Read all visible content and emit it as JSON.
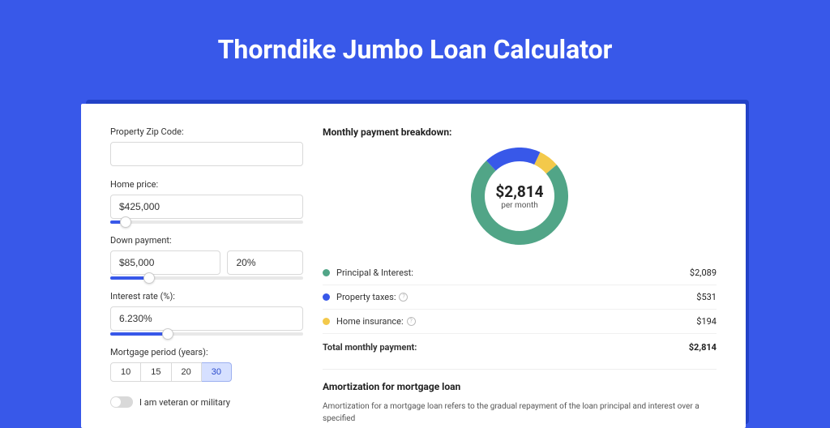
{
  "page": {
    "title": "Thorndike Jumbo Loan Calculator",
    "background_color": "#3858e9"
  },
  "form": {
    "zip": {
      "label": "Property Zip Code:",
      "value": ""
    },
    "home_price": {
      "label": "Home price:",
      "value": "$425,000",
      "slider_percent": 8
    },
    "down_payment": {
      "label": "Down payment:",
      "amount": "$85,000",
      "percent": "20%",
      "slider_percent": 20
    },
    "interest_rate": {
      "label": "Interest rate (%):",
      "value": "6.230%",
      "slider_percent": 30
    },
    "mortgage_period": {
      "label": "Mortgage period (years):",
      "options": [
        "10",
        "15",
        "20",
        "30"
      ],
      "selected": "30"
    },
    "veteran": {
      "label": "I am veteran or military",
      "checked": false
    }
  },
  "breakdown": {
    "title": "Monthly payment breakdown:",
    "donut": {
      "center_amount": "$2,814",
      "center_sub": "per month",
      "slices": [
        {
          "label": "Principal & Interest:",
          "value": "$2,089",
          "color": "#51a587",
          "percent": 74.2,
          "has_info": false
        },
        {
          "label": "Property taxes:",
          "value": "$531",
          "color": "#3858e9",
          "percent": 18.9,
          "has_info": true
        },
        {
          "label": "Home insurance:",
          "value": "$194",
          "color": "#f3c94b",
          "percent": 6.9,
          "has_info": true
        }
      ],
      "ring_width": 17,
      "diameter": 120,
      "background_color": "#ffffff"
    },
    "total": {
      "label": "Total monthly payment:",
      "value": "$2,814"
    }
  },
  "amortization": {
    "title": "Amortization for mortgage loan",
    "text": "Amortization for a mortgage loan refers to the gradual repayment of the loan principal and interest over a specified"
  }
}
